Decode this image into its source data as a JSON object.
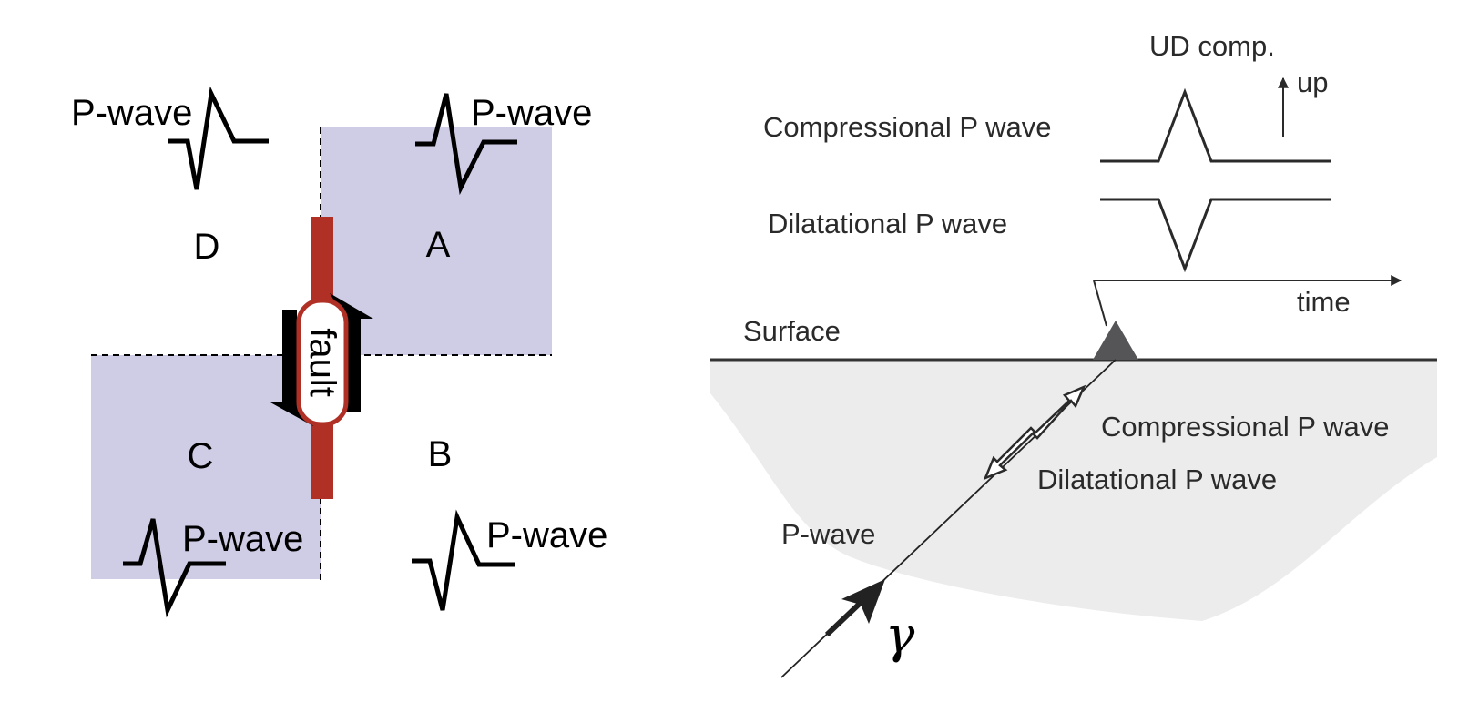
{
  "left_panel": {
    "quadrants": {
      "a": "A",
      "b": "B",
      "c": "C",
      "d": "D"
    },
    "fault_label": "fault",
    "pwave_labels": {
      "top_left": "P-wave",
      "top_right": "P-wave",
      "bottom_left": "P-wave",
      "bottom_right": "P-wave"
    },
    "colors": {
      "shaded_quadrant": "#cfcce6",
      "fault": "#b03026"
    }
  },
  "right_panel": {
    "component_label": "UD comp.",
    "up_label": "up",
    "compressional_trace_label": "Compressional P wave",
    "dilatational_trace_label": "Dilatational P wave",
    "time_label": "time",
    "surface_label": "Surface",
    "compressional_ray_label": "Compressional P wave",
    "dilatational_ray_label": "Dilatational P wave",
    "pwave_label": "P-wave",
    "ray_symbol": "γ",
    "colors": {
      "ground": "#ececec",
      "station": "#555558"
    }
  }
}
